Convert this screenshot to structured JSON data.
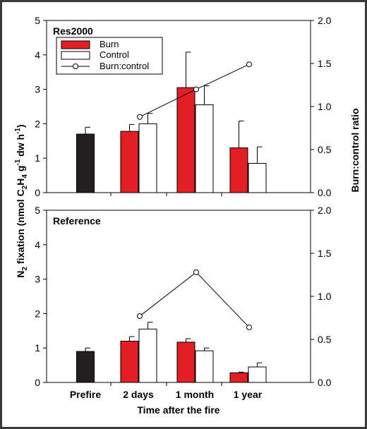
{
  "colors": {
    "burn": "#e31e24",
    "control": "#ffffff",
    "prefire": "#231f20",
    "line": "#000000"
  },
  "shared": {
    "xlabel": "Time after the fire",
    "ylabel_left_parts": [
      "N",
      "2",
      " fixation (nmol C",
      "2",
      "H",
      "4",
      " g",
      "-1",
      " dw h",
      "-1",
      ")"
    ],
    "ylabel_right": "Burn:control ratio",
    "categories": [
      "Prefire",
      "2 days",
      "1 month",
      "1 year"
    ],
    "legend": [
      "Burn",
      "Control",
      "Burn:control"
    ],
    "left_ticks": [
      "0",
      "1",
      "2",
      "3",
      "4",
      "5"
    ],
    "right_ticks": [
      "0.0",
      "0.5",
      "1.0",
      "1.5",
      "2.0"
    ]
  },
  "chart_data": [
    {
      "type": "bar",
      "title": "Res2000",
      "categories": [
        "Prefire",
        "2 days",
        "1 month",
        "1 year"
      ],
      "ylim": [
        0,
        5
      ],
      "y2lim": [
        0,
        2
      ],
      "prefire": {
        "value": 1.7,
        "error": 0.2
      },
      "series": [
        {
          "name": "Burn",
          "values": [
            null,
            1.78,
            3.05,
            1.3
          ],
          "errors": [
            null,
            0.2,
            1.03,
            0.78
          ]
        },
        {
          "name": "Control",
          "values": [
            null,
            2.0,
            2.55,
            0.85
          ],
          "errors": [
            null,
            0.3,
            0.55,
            0.48
          ]
        },
        {
          "name": "Burn:control",
          "axis": "right",
          "values": [
            null,
            0.88,
            1.2,
            1.49
          ]
        }
      ],
      "legend_position": "top-left"
    },
    {
      "type": "bar",
      "title": "Reference",
      "categories": [
        "Prefire",
        "2 days",
        "1 month",
        "1 year"
      ],
      "ylim": [
        0,
        5
      ],
      "y2lim": [
        0,
        2
      ],
      "prefire": {
        "value": 0.9,
        "error": 0.1
      },
      "series": [
        {
          "name": "Burn",
          "values": [
            null,
            1.2,
            1.17,
            0.28
          ],
          "errors": [
            null,
            0.13,
            0.1,
            0.02
          ]
        },
        {
          "name": "Control",
          "values": [
            null,
            1.55,
            0.92,
            0.45
          ],
          "errors": [
            null,
            0.2,
            0.08,
            0.12
          ]
        },
        {
          "name": "Burn:control",
          "axis": "right",
          "values": [
            null,
            0.77,
            1.28,
            0.64
          ]
        }
      ]
    }
  ]
}
